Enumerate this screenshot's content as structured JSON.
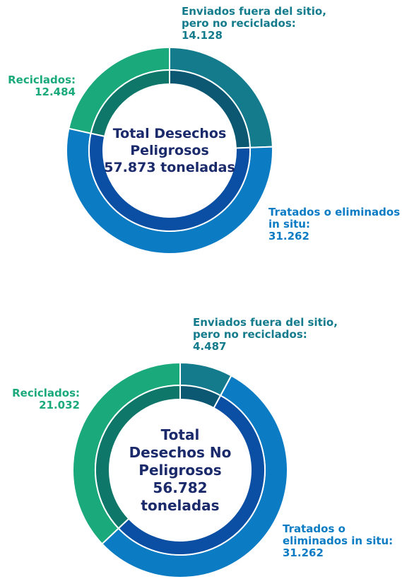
{
  "chart_data": [
    {
      "type": "donut",
      "center_text": "Total Desechos\nPeligrosos\n57.873 toneladas",
      "categories": [
        "Enviados fuera del sitio,\npero no reciclados:",
        "Tratados o eliminados\n in situ:",
        "Reciclados:"
      ],
      "values": [
        14128,
        31262,
        12484
      ],
      "value_labels": [
        "14.128",
        "31.262",
        "12.484"
      ],
      "colors": [
        "#137b8c",
        "#0b7cc4",
        "#1aa97b"
      ],
      "inner_colors": [
        "#0c5873",
        "#0a4fa3",
        "#0f7769"
      ]
    },
    {
      "type": "donut",
      "center_text": "Total\nDesechos No\nPeligrosos\n56.782\ntoneladas",
      "categories": [
        "Enviados fuera del sitio,\npero no reciclados:",
        "Tratados o\neliminados in situ:",
        "Reciclados:"
      ],
      "values": [
        4487,
        31262,
        21032
      ],
      "value_labels": [
        "4.487",
        "31.262",
        "21.032"
      ],
      "colors": [
        "#137b8c",
        "#0b7cc4",
        "#1aa97b"
      ],
      "inner_colors": [
        "#0c5873",
        "#0a4fa3",
        "#0f7769"
      ]
    }
  ]
}
